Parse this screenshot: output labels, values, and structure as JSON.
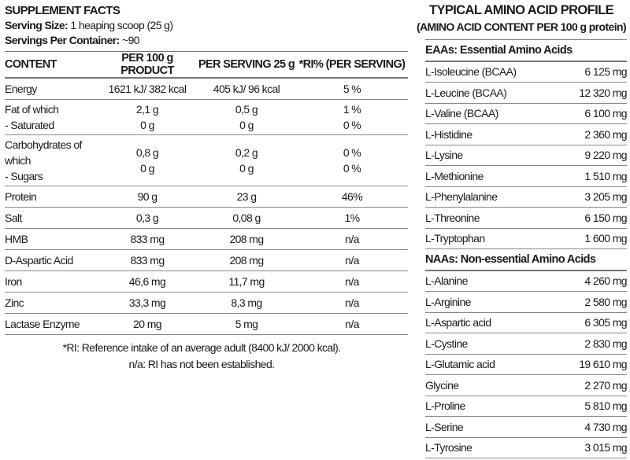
{
  "supplement": {
    "title": "SUPPLEMENT FACTS",
    "serving_size_label": "Serving Size:",
    "serving_size_value": " 1 heaping scoop (25 g)",
    "servings_label": "Servings Per Container:",
    "servings_value": " ~90",
    "headers": [
      "CONTENT",
      "PER 100 g PRODUCT",
      "PER SERVING 25 g",
      "*RI% (PER SERVING)"
    ],
    "rows": [
      [
        [
          "Energy"
        ],
        [
          "1621 kJ/ 382 kcal"
        ],
        [
          "405 kJ/ 96 kcal"
        ],
        [
          "5 %"
        ]
      ],
      [
        [
          "Fat of which",
          "- Saturated"
        ],
        [
          "2,1 g",
          "0 g"
        ],
        [
          "0,5 g",
          "0 g"
        ],
        [
          "1 %",
          "0 %"
        ]
      ],
      [
        [
          "Carbohydrates of which",
          "- Sugars"
        ],
        [
          "0,8 g",
          "0 g"
        ],
        [
          "0,2 g",
          "0 g"
        ],
        [
          "0 %",
          "0 %"
        ]
      ],
      [
        [
          "Protein"
        ],
        [
          "90 g"
        ],
        [
          "23 g"
        ],
        [
          "46%"
        ]
      ],
      [
        [
          "Salt"
        ],
        [
          "0,3 g"
        ],
        [
          "0,08 g"
        ],
        [
          "1%"
        ]
      ],
      [
        [
          "HMB"
        ],
        [
          "833 mg"
        ],
        [
          "208 mg"
        ],
        [
          "n/a"
        ]
      ],
      [
        [
          "D-Aspartic Acid"
        ],
        [
          "833 mg"
        ],
        [
          "208 mg"
        ],
        [
          "n/a"
        ]
      ],
      [
        [
          "Iron"
        ],
        [
          "46,6 mg"
        ],
        [
          "11,7 mg"
        ],
        [
          "n/a"
        ]
      ],
      [
        [
          "Zinc"
        ],
        [
          "33,3 mg"
        ],
        [
          "8,3 mg"
        ],
        [
          "n/a"
        ]
      ],
      [
        [
          "Lactase Enzyme"
        ],
        [
          "20 mg"
        ],
        [
          "5 mg"
        ],
        [
          "n/a"
        ]
      ]
    ],
    "footnote_1": "*RI: Reference intake of an average adult (8400 kJ/ 2000 kcal).",
    "footnote_2": "n/a: RI has not been established."
  },
  "amino": {
    "title": "TYPICAL AMINO ACID PROFILE",
    "subtitle": "(AMINO ACID CONTENT PER 100 g protein)",
    "sections": [
      {
        "header": "EAAs: Essential Amino Acids",
        "items": [
          [
            "L-Isoleucine (BCAA)",
            "6 125 mg"
          ],
          [
            "L-Leucine (BCAA)",
            "12 320 mg"
          ],
          [
            "L-Valine (BCAA)",
            "6 100 mg"
          ],
          [
            "L-Histidine",
            "2 360 mg"
          ],
          [
            "L-Lysine",
            "9 220 mg"
          ],
          [
            "L-Methionine",
            "1 510 mg"
          ],
          [
            "L-Phenylalanine",
            "3 205 mg"
          ],
          [
            "L-Threonine",
            "6 150 mg"
          ],
          [
            "L-Tryptophan",
            "1 600 mg"
          ]
        ]
      },
      {
        "header": "NAAs: Non-essential Amino Acids",
        "items": [
          [
            "L-Alanine",
            "4 260 mg"
          ],
          [
            "L-Arginine",
            "2 580 mg"
          ],
          [
            "L-Aspartic acid",
            "6 305 mg"
          ],
          [
            "L-Cystine",
            "2 830 mg"
          ],
          [
            "L-Glutamic acid",
            "19 610 mg"
          ],
          [
            "Glycine",
            "2 270 mg"
          ],
          [
            "L-Proline",
            "5 810 mg"
          ],
          [
            "L-Serine",
            "4 730 mg"
          ],
          [
            "L-Tyrosine",
            "3 015 mg"
          ]
        ]
      }
    ]
  }
}
